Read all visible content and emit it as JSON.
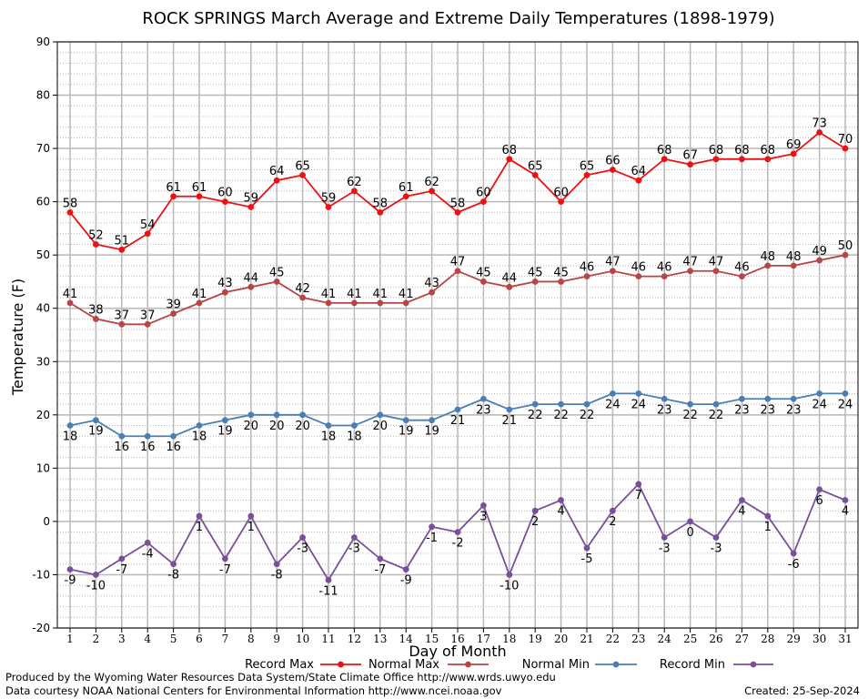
{
  "chart_data": {
    "type": "line",
    "title": "ROCK SPRINGS March Average and Extreme Daily Temperatures (1898-1979)",
    "xlabel": "Day of Month",
    "ylabel": "Temperature (F)",
    "xlim": [
      1,
      31
    ],
    "ylim": [
      -20,
      90
    ],
    "yticks": [
      -20,
      -10,
      0,
      10,
      20,
      30,
      40,
      50,
      60,
      70,
      80,
      90
    ],
    "x": [
      1,
      2,
      3,
      4,
      5,
      6,
      7,
      8,
      9,
      10,
      11,
      12,
      13,
      14,
      15,
      16,
      17,
      18,
      19,
      20,
      21,
      22,
      23,
      24,
      25,
      26,
      27,
      28,
      29,
      30,
      31
    ],
    "grid": true,
    "legend_position": "bottom",
    "series": [
      {
        "name": "Record Max",
        "color": "#ee1111",
        "label_position": "above",
        "values": [
          58,
          52,
          51,
          54,
          61,
          61,
          60,
          59,
          64,
          65,
          59,
          62,
          58,
          61,
          62,
          58,
          60,
          68,
          65,
          60,
          65,
          66,
          64,
          68,
          67,
          68,
          68,
          68,
          69,
          73,
          70
        ]
      },
      {
        "name": "Normal Max",
        "color": "#b84545",
        "label_position": "above",
        "values": [
          41,
          38,
          37,
          37,
          39,
          41,
          43,
          44,
          45,
          42,
          41,
          41,
          41,
          41,
          43,
          47,
          45,
          44,
          45,
          45,
          46,
          47,
          46,
          46,
          47,
          47,
          46,
          48,
          48,
          49,
          50
        ]
      },
      {
        "name": "Normal Min",
        "color": "#4a7fb5",
        "label_position": "below",
        "values": [
          18,
          19,
          16,
          16,
          16,
          18,
          19,
          20,
          20,
          20,
          18,
          18,
          20,
          19,
          19,
          21,
          23,
          21,
          22,
          22,
          22,
          24,
          24,
          23,
          22,
          22,
          23,
          23,
          23,
          24,
          24
        ]
      },
      {
        "name": "Record Min",
        "color": "#7a4f9a",
        "label_position": "below",
        "values": [
          -9,
          -10,
          -7,
          -4,
          -8,
          1,
          -7,
          1,
          -8,
          -3,
          -11,
          -3,
          -7,
          -9,
          -1,
          -2,
          3,
          -10,
          2,
          4,
          -5,
          2,
          7,
          -3,
          0,
          -3,
          4,
          1,
          -6,
          6,
          4
        ]
      }
    ]
  },
  "footer": {
    "produced_by": "Produced by the Wyoming Water Resources Data System/State Climate Office http://www.wrds.uwyo.edu",
    "data_courtesy": "Data courtesy NOAA National Centers for Environmental Information http://www.ncei.noaa.gov",
    "created": "Created:  25-Sep-2024"
  }
}
